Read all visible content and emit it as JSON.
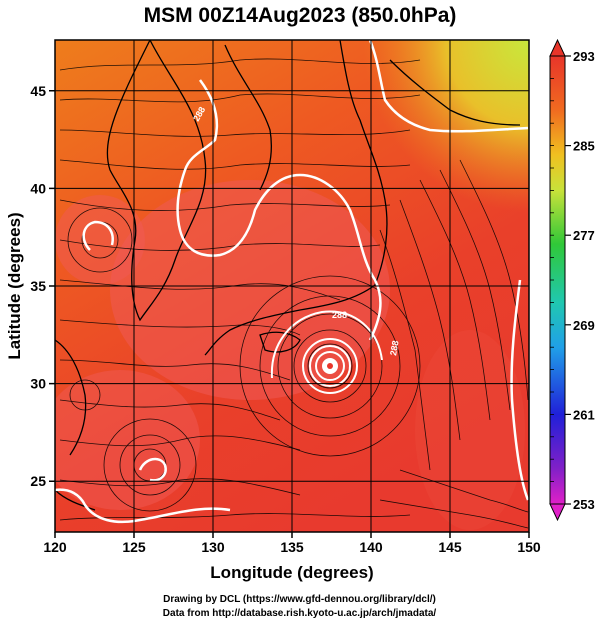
{
  "map": {
    "title": "MSM 00Z14Aug2023 (850.0hPa)",
    "xlabel": "Longitude (degrees)",
    "ylabel": "Latitude  (degrees)",
    "x_ticks": [
      "120",
      "125",
      "130",
      "135",
      "140",
      "145",
      "150"
    ],
    "y_ticks": [
      "25",
      "30",
      "35",
      "40",
      "45"
    ],
    "lon_range": [
      120,
      150
    ],
    "lat_range": [
      22.4,
      47.6
    ],
    "colorbar_ticks": [
      "293",
      "285",
      "277",
      "269",
      "261",
      "253"
    ],
    "colorbar_range": [
      253,
      293
    ],
    "contour_labels": [
      "288",
      "288",
      "288"
    ],
    "typhoon_center": {
      "lon": 137.5,
      "lat": 31.5
    },
    "colors": {
      "warm": "#e8352a",
      "hot": "#f25c54",
      "orange": "#ee7a1a",
      "yellow": "#c8e23a",
      "contour": "#ffffff",
      "streamline": "#000000"
    }
  },
  "credits": {
    "line1": "Drawing by DCL (https://www.gfd-dennou.org/library/dcl/)",
    "line2": "Data from http://database.rish.kyoto-u.ac.jp/arch/jmadata/"
  }
}
